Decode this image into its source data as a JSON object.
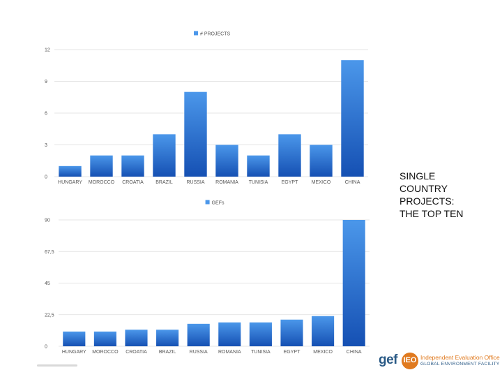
{
  "slide": {
    "title_lines": [
      "SINGLE",
      "COUNTRY",
      "PROJECTS:",
      "THE TOP TEN"
    ]
  },
  "logo": {
    "gef": "gef",
    "ieo": "IEO",
    "line1": "Independent Evaluation Office",
    "line2": "GLOBAL ENVIRONMENT FACILITY"
  },
  "colors": {
    "bar_top": "#4b97ea",
    "bar_bottom": "#1550b3",
    "grid": "#dddddd",
    "accent_orange": "#e07a1f",
    "brand_blue": "#2a5a86"
  },
  "chart_data": [
    {
      "type": "bar",
      "title": "",
      "xlabel": "",
      "ylabel": "",
      "legend": {
        "label": "# PROJECTS",
        "position": "top-center"
      },
      "categories": [
        "HUNGARY",
        "MOROCCO",
        "CROATIA",
        "BRAZIL",
        "RUSSIA",
        "ROMANIA",
        "TUNISIA",
        "EGYPT",
        "MEXICO",
        "CHINA"
      ],
      "series": [
        {
          "name": "# PROJECTS",
          "values": [
            1,
            2,
            2,
            4,
            8,
            3,
            2,
            4,
            3,
            11
          ]
        }
      ],
      "ylim": [
        0,
        12
      ],
      "yticks": [
        0,
        3,
        6,
        9,
        12
      ],
      "ytick_labels": [
        "0",
        "3",
        "6",
        "9",
        "12"
      ],
      "grid": true
    },
    {
      "type": "bar",
      "title": "",
      "xlabel": "",
      "ylabel": "",
      "legend": {
        "label": "GEFs",
        "position": "top-center"
      },
      "categories": [
        "HUNGARY",
        "MOROCCO",
        "CROATIA",
        "BRAZIL",
        "RUSSIA",
        "ROMANIA",
        "TUNISIA",
        "EGYPT",
        "MEXICO",
        "CHINA"
      ],
      "series": [
        {
          "name": "GEFs",
          "values": [
            10.5,
            10.5,
            11.8,
            11.8,
            16,
            17,
            17,
            19,
            21.5,
            90
          ]
        }
      ],
      "ylim": [
        0,
        90
      ],
      "yticks": [
        0,
        22.5,
        45,
        67.5,
        90
      ],
      "ytick_labels": [
        "0",
        "22,5",
        "45",
        "67,5",
        "90"
      ],
      "grid": true
    }
  ]
}
